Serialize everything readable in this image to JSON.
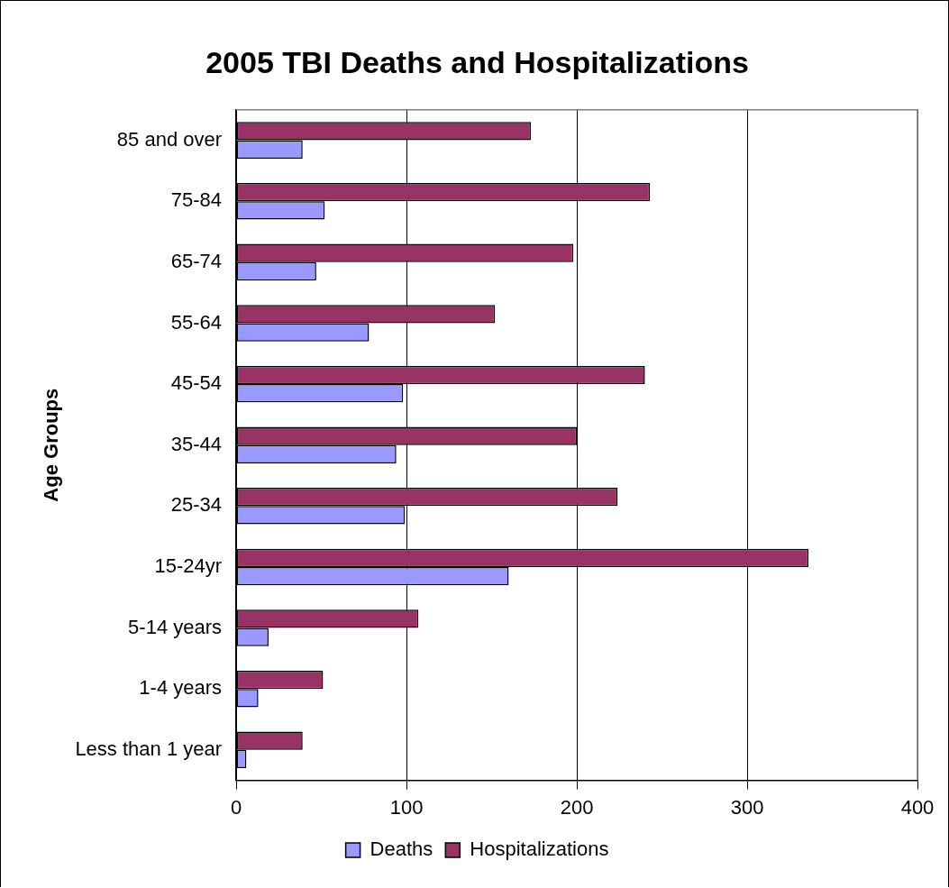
{
  "chart_data": {
    "type": "bar",
    "orientation": "horizontal",
    "title": "2005 TBI Deaths and Hospitalizations",
    "ylabel": "Age Groups",
    "categories": [
      "85 and over",
      "75-84",
      "65-74",
      "55-64",
      "45-54",
      "35-44",
      "25-34",
      "15-24yr",
      "5-14 years",
      "1-4 years",
      "Less than 1 year"
    ],
    "series": [
      {
        "name": "Deaths",
        "color": "#9999ff",
        "values": [
          39,
          52,
          47,
          78,
          98,
          94,
          99,
          160,
          19,
          13,
          6
        ]
      },
      {
        "name": "Hospitalizations",
        "color": "#993366",
        "values": [
          173,
          243,
          198,
          152,
          240,
          200,
          224,
          336,
          107,
          51,
          39
        ]
      }
    ],
    "xlim": [
      0,
      400
    ],
    "xticks": [
      0,
      100,
      200,
      300,
      400
    ],
    "grid": "x",
    "legend": "bottom"
  }
}
